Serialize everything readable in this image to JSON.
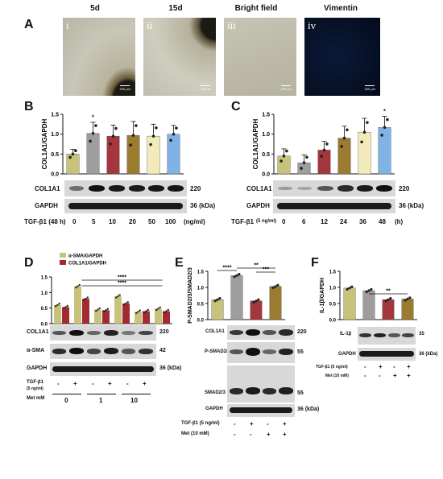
{
  "panel_A": {
    "letter": "A",
    "images": [
      {
        "title": "5d",
        "roman": "i",
        "scale_bar": "200 μm"
      },
      {
        "title": "15d",
        "roman": "ii",
        "scale_bar": "200 μm"
      },
      {
        "title": "Bright field",
        "roman": "iii",
        "scale_bar": "200 μm"
      },
      {
        "title": "Vimentin",
        "roman": "iv",
        "scale_bar": "200 μm"
      }
    ]
  },
  "panel_B": {
    "letter": "B",
    "blot_labels": [
      "COL1A1",
      "GAPDH"
    ],
    "mw": [
      "220",
      "36 (kDa)"
    ],
    "treatment_label": "TGF-β1 (48 h)",
    "doses": [
      "0",
      "5",
      "10",
      "20",
      "50",
      "100"
    ],
    "unit": "(ng/ml)"
  },
  "panel_C": {
    "letter": "C",
    "blot_labels": [
      "COL1A1",
      "GAPDH"
    ],
    "mw": [
      "220",
      "36 (kDa)"
    ],
    "treatment_label": "TGF-β1",
    "treatment_sub": "(5 ng/ml)",
    "times": [
      "0",
      "6",
      "12",
      "24",
      "36",
      "48"
    ],
    "unit": "(h)"
  },
  "panel_D": {
    "letter": "D",
    "blot_labels": [
      "COL1A1",
      "α-SMA",
      "GAPDH"
    ],
    "mw": [
      "220",
      "42",
      "36 (kDa)"
    ],
    "tgf_label": "TGF-β1",
    "tgf_sub": "(5 ng/ml)",
    "tgf_signs": [
      "-",
      "+",
      "-",
      "+",
      "-",
      "+"
    ],
    "met_label": "Met mM",
    "met_groups": [
      "0",
      "1",
      "10"
    ]
  },
  "panel_E": {
    "letter": "E",
    "blot_labels": [
      "COL1A1",
      "P-SMAD2/3",
      "SMAD2/3",
      "GAPDH"
    ],
    "mw": [
      "220",
      "55",
      "55",
      "36 (kDa)"
    ],
    "tgf_label": "TGF-β1 (5 ng/ml)",
    "tgf_signs": [
      "-",
      "+",
      "-",
      "+"
    ],
    "met_label": "Met (10 mM)",
    "met_signs": [
      "-",
      "-",
      "+",
      "+"
    ]
  },
  "panel_F": {
    "letter": "F",
    "blot_labels": [
      "IL-1β",
      "GAPDH"
    ],
    "mw": [
      "35",
      "36 (kDa)"
    ],
    "tgf_label": "TGF-β1 (5 ng/ml)",
    "tgf_signs": [
      "-",
      "+",
      "-",
      "+"
    ],
    "met_label": "Met (10 mM)",
    "met_signs": [
      "-",
      "-",
      "+",
      "+"
    ]
  },
  "colors": {
    "olive": "#c8c27a",
    "grey": "#9e9e9e",
    "red": "#a4373d",
    "brown": "#9b7b2f",
    "cream": "#f2eab8",
    "blue": "#7fb2e5",
    "dark_red": "#a02b33"
  },
  "chart_data": [
    {
      "id": "B",
      "type": "bar",
      "ylabel": "COL1A1/GAPDH",
      "categories": [
        "0",
        "5",
        "10",
        "20",
        "50",
        "100"
      ],
      "values": [
        0.5,
        1.02,
        0.95,
        0.97,
        0.95,
        1.0
      ],
      "errors": [
        0.12,
        0.28,
        0.28,
        0.35,
        0.3,
        0.22
      ],
      "ylim": [
        0,
        1.5
      ],
      "yticks": [
        "0.0",
        "0.5",
        "1.0",
        "1.5"
      ],
      "bar_colors": [
        "#c8c27a",
        "#9e9e9e",
        "#a4373d",
        "#9b7b2f",
        "#f2eab8",
        "#7fb2e5"
      ],
      "significance": [
        "",
        "*",
        "",
        "",
        "",
        ""
      ]
    },
    {
      "id": "C",
      "type": "bar",
      "ylabel": "COL1A1/GAPDH",
      "categories": [
        "0",
        "6",
        "12",
        "24",
        "36",
        "48"
      ],
      "values": [
        0.45,
        0.28,
        0.6,
        0.9,
        1.05,
        1.17
      ],
      "errors": [
        0.18,
        0.2,
        0.22,
        0.3,
        0.35,
        0.28
      ],
      "ylim": [
        0,
        1.5
      ],
      "yticks": [
        "0.0",
        "0.5",
        "1.0",
        "1.5"
      ],
      "bar_colors": [
        "#c8c27a",
        "#9e9e9e",
        "#a4373d",
        "#9b7b2f",
        "#f2eab8",
        "#7fb2e5"
      ],
      "significance": [
        "",
        "",
        "",
        "",
        "",
        "*"
      ]
    },
    {
      "id": "D",
      "type": "bar",
      "yticks": [
        "0.0",
        "0.5",
        "1.0",
        "1.5"
      ],
      "ylim": [
        0,
        1.5
      ],
      "series": [
        {
          "name": "α-SMA/GAPDH",
          "values": [
            0.6,
            1.2,
            0.45,
            0.88,
            0.38,
            0.48
          ],
          "color": "#c8c27a"
        },
        {
          "name": "COL1A1/GAPDH",
          "values": [
            0.53,
            0.8,
            0.43,
            0.65,
            0.4,
            0.4
          ],
          "color": "#a02b33"
        }
      ],
      "significance": [
        {
          "label": "****",
          "from": 1,
          "to": 5
        },
        {
          "label": "****",
          "from": 1,
          "to": 5
        }
      ]
    },
    {
      "id": "E",
      "type": "bar",
      "ylabel": "P-SMAD2/3/SMAD2/3",
      "values": [
        0.62,
        1.37,
        0.58,
        1.03
      ],
      "ylim": [
        0,
        1.5
      ],
      "yticks": [
        "0.0",
        "0.5",
        "1.0",
        "1.5"
      ],
      "bar_colors": [
        "#c8c27a",
        "#9e9e9e",
        "#a4373d",
        "#9b7b2f"
      ],
      "significance": [
        {
          "label": "****",
          "from": 0,
          "to": 1
        },
        {
          "label": "**",
          "from": 1,
          "to": 3
        },
        {
          "label": "***",
          "from": 2,
          "to": 3
        }
      ]
    },
    {
      "id": "F",
      "type": "bar",
      "ylabel": "IL-1β/GAPDH",
      "values": [
        0.98,
        0.9,
        0.62,
        0.64
      ],
      "ylim": [
        0,
        1.5
      ],
      "yticks": [
        "0.0",
        "0.5",
        "1.0",
        "1.5"
      ],
      "bar_colors": [
        "#c8c27a",
        "#9e9e9e",
        "#a4373d",
        "#9b7b2f"
      ],
      "significance": [
        {
          "label": "**",
          "from": 1,
          "to": 3
        }
      ]
    }
  ]
}
